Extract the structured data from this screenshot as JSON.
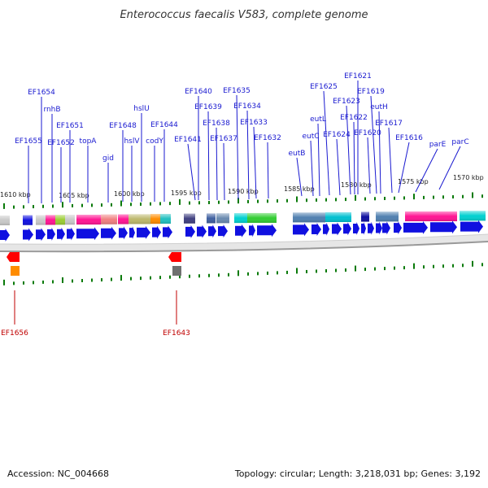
{
  "title": "Enterococcus faecalis V583, complete genome",
  "footer": {
    "accession": "Accession: NC_004668",
    "summary": "Topology: circular; Length: 3,218,031 bp; Genes: 3,192"
  },
  "scale_labels": [
    "1610 kbp",
    "1605 kbp",
    "1600 kbp",
    "1595 kbp",
    "1590 kbp",
    "1585 kbp",
    "1580 kbp",
    "1575 kbp",
    "1570 kbp"
  ],
  "forward_genes": [
    "EF1655",
    "EF1654",
    "rnhB",
    "EF1652",
    "EF1651",
    "topA",
    "gid",
    "EF1648",
    "hslV",
    "hslU",
    "codY",
    "EF1644",
    "EF1641",
    "EF1640",
    "EF1639",
    "EF1638",
    "EF1637",
    "EF1635",
    "EF1634",
    "EF1633",
    "EF1632",
    "eutB",
    "eutC",
    "eutL",
    "EF1625",
    "EF1624",
    "EF1623",
    "EF1622",
    "EF1621",
    "EF1620",
    "EF1619",
    "eutH",
    "EF1617",
    "EF1616",
    "parE",
    "parC"
  ],
  "reverse_genes": [
    "EF1656",
    "EF1643"
  ],
  "colors": {
    "gene_arrow": "#1010e0",
    "forward_label": "#1a1ad0",
    "reverse_label": "#c00000",
    "tick": "#0a7a0a"
  }
}
